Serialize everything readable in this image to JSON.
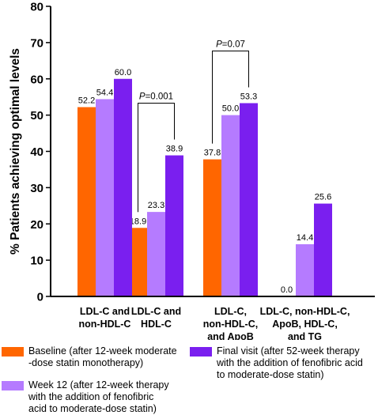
{
  "chart_data": {
    "type": "bar",
    "ylabel": "% Patients achieving optimal levels",
    "ylim": [
      0,
      80
    ],
    "yticks": [
      0,
      10,
      20,
      30,
      40,
      50,
      60,
      70,
      80
    ],
    "categories": [
      [
        "LDL-C and",
        "non-HDL-C"
      ],
      [
        "LDL-C and",
        "HDL-C"
      ],
      [
        "LDL-C,",
        "non-HDL-C,",
        "and ApoB"
      ],
      [
        "LDL-C, non-HDL-C,",
        "ApoB, HDL-C,",
        "and TG"
      ]
    ],
    "series": [
      {
        "name": "Baseline (after 12-week moderate -dose statin monotherapy)",
        "legend_lines": [
          "Baseline (after 12-week moderate",
          "-dose statin monotherapy)"
        ],
        "color": "#ff6600",
        "values": [
          52.2,
          18.9,
          37.8,
          0.0
        ],
        "labels": [
          "52.2",
          "18.9",
          "37.8",
          "0.0"
        ]
      },
      {
        "name": "Week 12 (after 12-week therapy with the addition of fenofibric acid to moderate-dose statin)",
        "legend_lines": [
          "Week 12 (after 12-week therapy",
          "with the addition of fenofibric",
          "acid to moderate-dose statin)"
        ],
        "color": "#b57bff",
        "values": [
          54.4,
          23.3,
          50.0,
          14.4
        ],
        "labels": [
          "54.4",
          "23.3",
          "50.0",
          "14.4"
        ]
      },
      {
        "name": "Final visit (after 52-week therapy with the addition of fenofibric acid to moderate-dose statin)",
        "legend_lines": [
          "Final visit (after 52-week therapy",
          "with the addition of fenofibric acid",
          "to moderate-dose statin)"
        ],
        "color": "#7a1fef",
        "values": [
          60.0,
          38.9,
          53.3,
          25.6
        ],
        "labels": [
          "60.0",
          "38.9",
          "53.3",
          "25.6"
        ]
      }
    ],
    "annotations": [
      {
        "category": 1,
        "from_series": 0,
        "to_series": 2,
        "p_label": "P",
        "p_value": "=0.001"
      },
      {
        "category": 2,
        "from_series": 0,
        "to_series": 2,
        "p_label": "P",
        "p_value": "=0.07"
      }
    ]
  }
}
